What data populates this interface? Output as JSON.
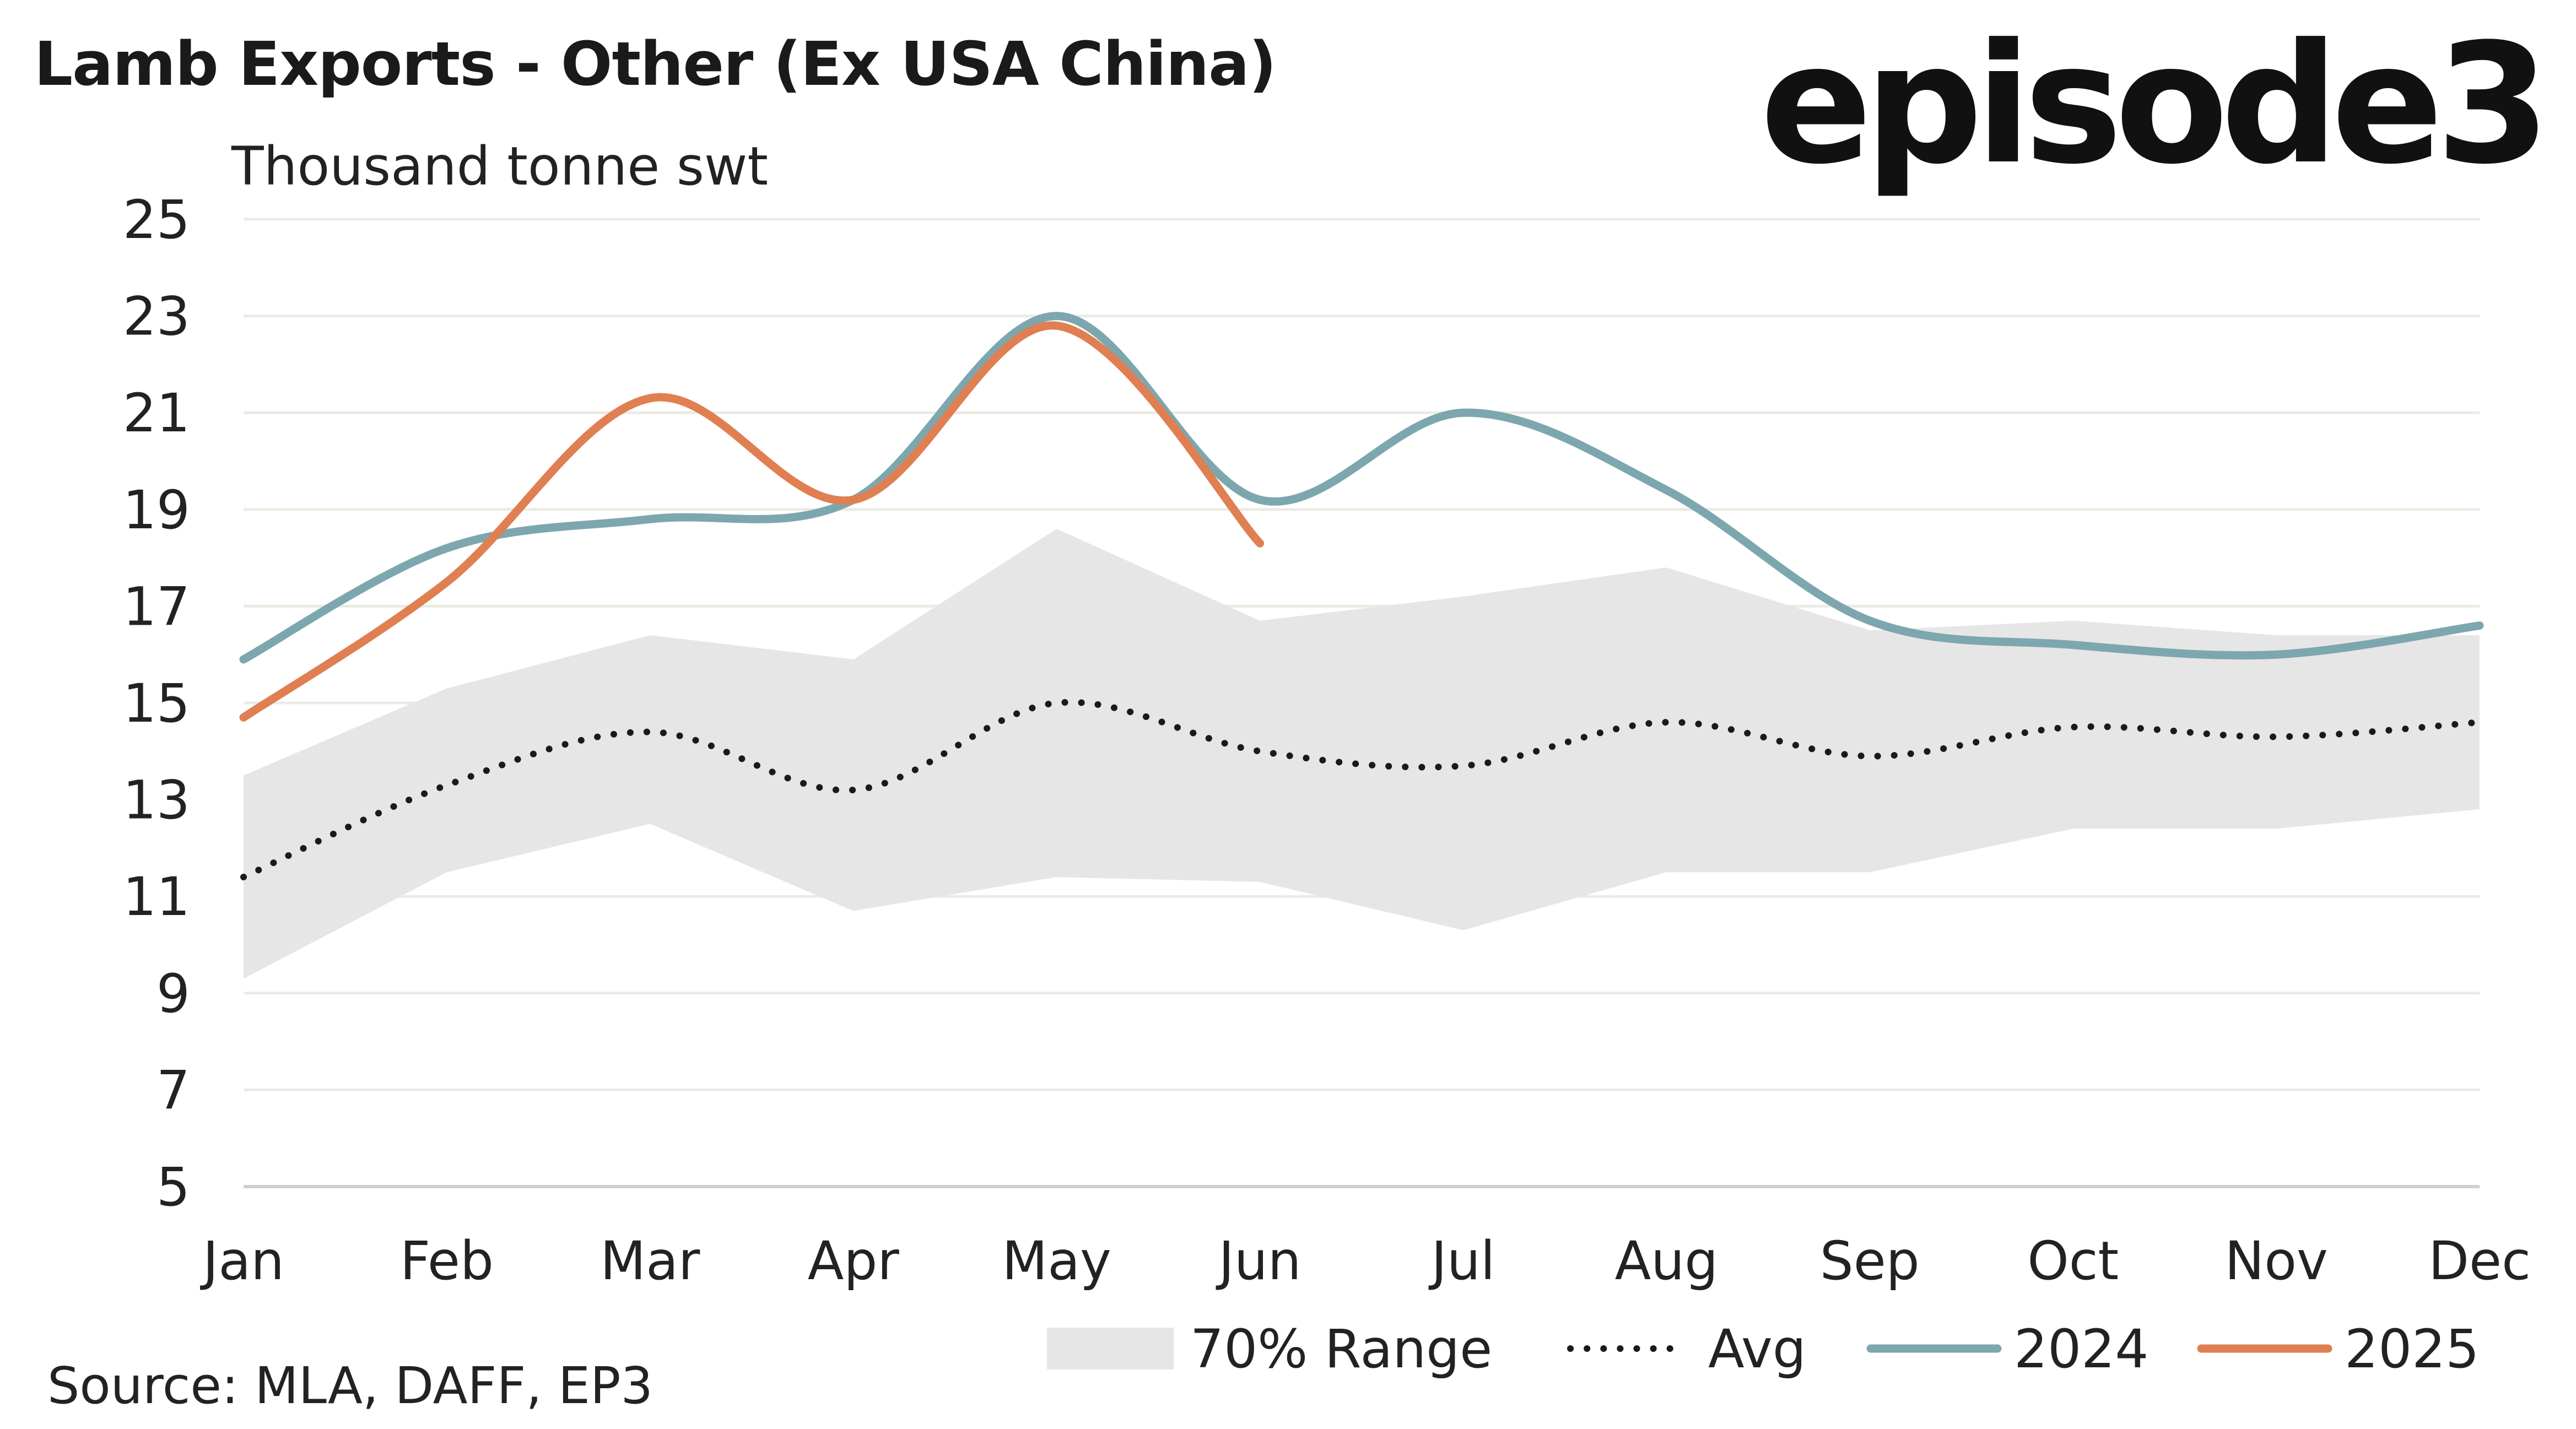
{
  "title": "Lamb Exports - Other (Ex USA China)",
  "logo": "episode3",
  "source": "Source: MLA, DAFF, EP3",
  "chart_data": {
    "type": "line",
    "title": "Lamb Exports - Other (Ex USA China)",
    "ylabel": "Thousand tonne swt",
    "xlabel": "",
    "categories": [
      "Jan",
      "Feb",
      "Mar",
      "Apr",
      "May",
      "Jun",
      "Jul",
      "Aug",
      "Sep",
      "Oct",
      "Nov",
      "Dec"
    ],
    "ylim": [
      5,
      25
    ],
    "yticks": [
      "5",
      "7",
      "9",
      "11",
      "13",
      "15",
      "17",
      "19",
      "21",
      "23",
      "25"
    ],
    "grid": true,
    "legend_position": "bottom-right",
    "range_band": {
      "name": "70% Range",
      "color": "#e6e6e6",
      "lower": [
        9.3,
        11.5,
        12.5,
        10.7,
        11.4,
        11.3,
        10.3,
        11.5,
        11.5,
        12.4,
        12.4,
        12.8
      ],
      "upper": [
        13.5,
        15.3,
        16.4,
        15.9,
        18.6,
        16.7,
        17.2,
        17.8,
        16.5,
        16.7,
        16.4,
        16.4
      ]
    },
    "series": [
      {
        "name": "Avg",
        "style": "dotted",
        "color": "#1a1a1a",
        "values": [
          11.4,
          13.3,
          14.4,
          13.2,
          15.0,
          14.0,
          13.7,
          14.6,
          13.9,
          14.5,
          14.3,
          14.6
        ]
      },
      {
        "name": "2024",
        "style": "solid",
        "color": "#7da7ae",
        "values": [
          15.9,
          18.2,
          18.8,
          19.2,
          23.0,
          19.2,
          21.0,
          19.4,
          16.7,
          16.2,
          16.0,
          16.6
        ]
      },
      {
        "name": "2025",
        "style": "solid",
        "color": "#e07f52",
        "values": [
          14.7,
          17.5,
          21.3,
          19.2,
          22.8,
          18.3,
          null,
          null,
          null,
          null,
          null,
          null
        ]
      }
    ]
  }
}
